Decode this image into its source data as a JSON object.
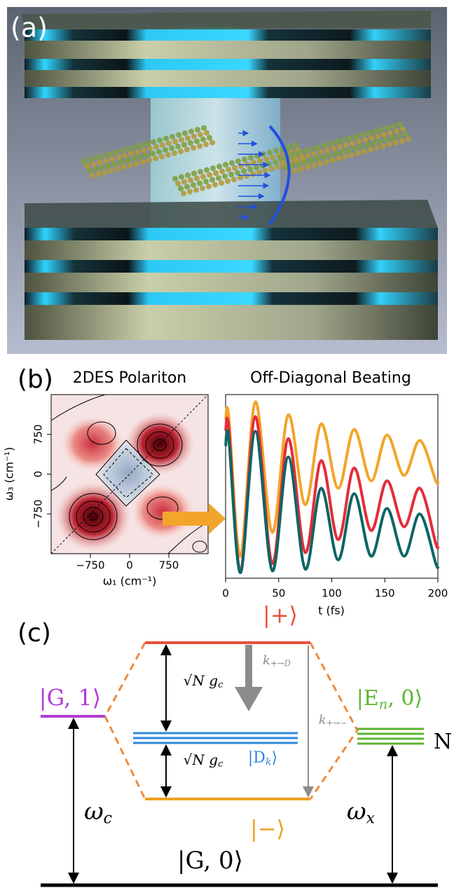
{
  "panels": {
    "a": "(a)",
    "b": "(b)",
    "c": "(c)"
  },
  "chart_data": [
    {
      "type": "contour",
      "title": "2DES Polariton",
      "xlabel": "ω₁ (cm⁻¹)",
      "ylabel": "ω₃ (cm⁻¹)",
      "xlim": [
        -1500,
        1500
      ],
      "ylim": [
        -1500,
        1500
      ],
      "xticks": [
        {
          "value": -750,
          "label": "−750"
        },
        0,
        750
      ],
      "yticks": [
        {
          "value": -750,
          "label": "−750"
        },
        0,
        750
      ]
    },
    {
      "type": "line",
      "title": "Off-Diagonal Beating",
      "xlabel": "t (fs)",
      "xlim": [
        0,
        200
      ],
      "ylim": [
        0,
        1
      ],
      "xticks": [
        0,
        50,
        100,
        150,
        200
      ],
      "x": [
        0,
        3,
        14,
        28,
        44,
        59,
        75,
        90,
        106,
        121,
        137,
        152,
        168,
        183,
        198,
        200
      ],
      "series": [
        {
          "color": "#f2a52a",
          "values": [
            0.86,
            0.88,
            0.12,
            0.96,
            0.25,
            0.89,
            0.4,
            0.84,
            0.49,
            0.81,
            0.53,
            0.78,
            0.56,
            0.75,
            0.53,
            0.53
          ]
        },
        {
          "color": "#e32d3a",
          "values": [
            0.8,
            0.82,
            0.04,
            0.88,
            0.08,
            0.76,
            0.14,
            0.64,
            0.21,
            0.6,
            0.26,
            0.53,
            0.28,
            0.49,
            0.19,
            0.18
          ]
        },
        {
          "color": "#0e6565",
          "values": [
            0.72,
            0.76,
            0.03,
            0.8,
            0.04,
            0.66,
            0.05,
            0.49,
            0.1,
            0.46,
            0.12,
            0.38,
            0.12,
            0.35,
            0.08,
            0.07
          ]
        }
      ]
    }
  ],
  "diagram": {
    "plus": "|+⟩",
    "minus": "|−⟩",
    "g1": "|G, 1⟩",
    "g0": "|G, 0⟩",
    "en0": {
      "base": "|E",
      "sub": "n",
      "after": ", 0⟩"
    },
    "dk": {
      "base": "|D",
      "sub": "k",
      "after": "⟩"
    },
    "n": "N",
    "coupling_upper": {
      "base": "√N g",
      "sub": "c"
    },
    "coupling_lower": {
      "base": "√N g",
      "sub": "c"
    },
    "k_plus_d": {
      "base": "k",
      "sub": "+→D"
    },
    "k_plus_minus": {
      "base": "k",
      "sub": "+→−"
    },
    "omega_c": {
      "base": "ω",
      "sub": "c"
    },
    "omega_x": {
      "base": "ω",
      "sub": "x"
    }
  }
}
